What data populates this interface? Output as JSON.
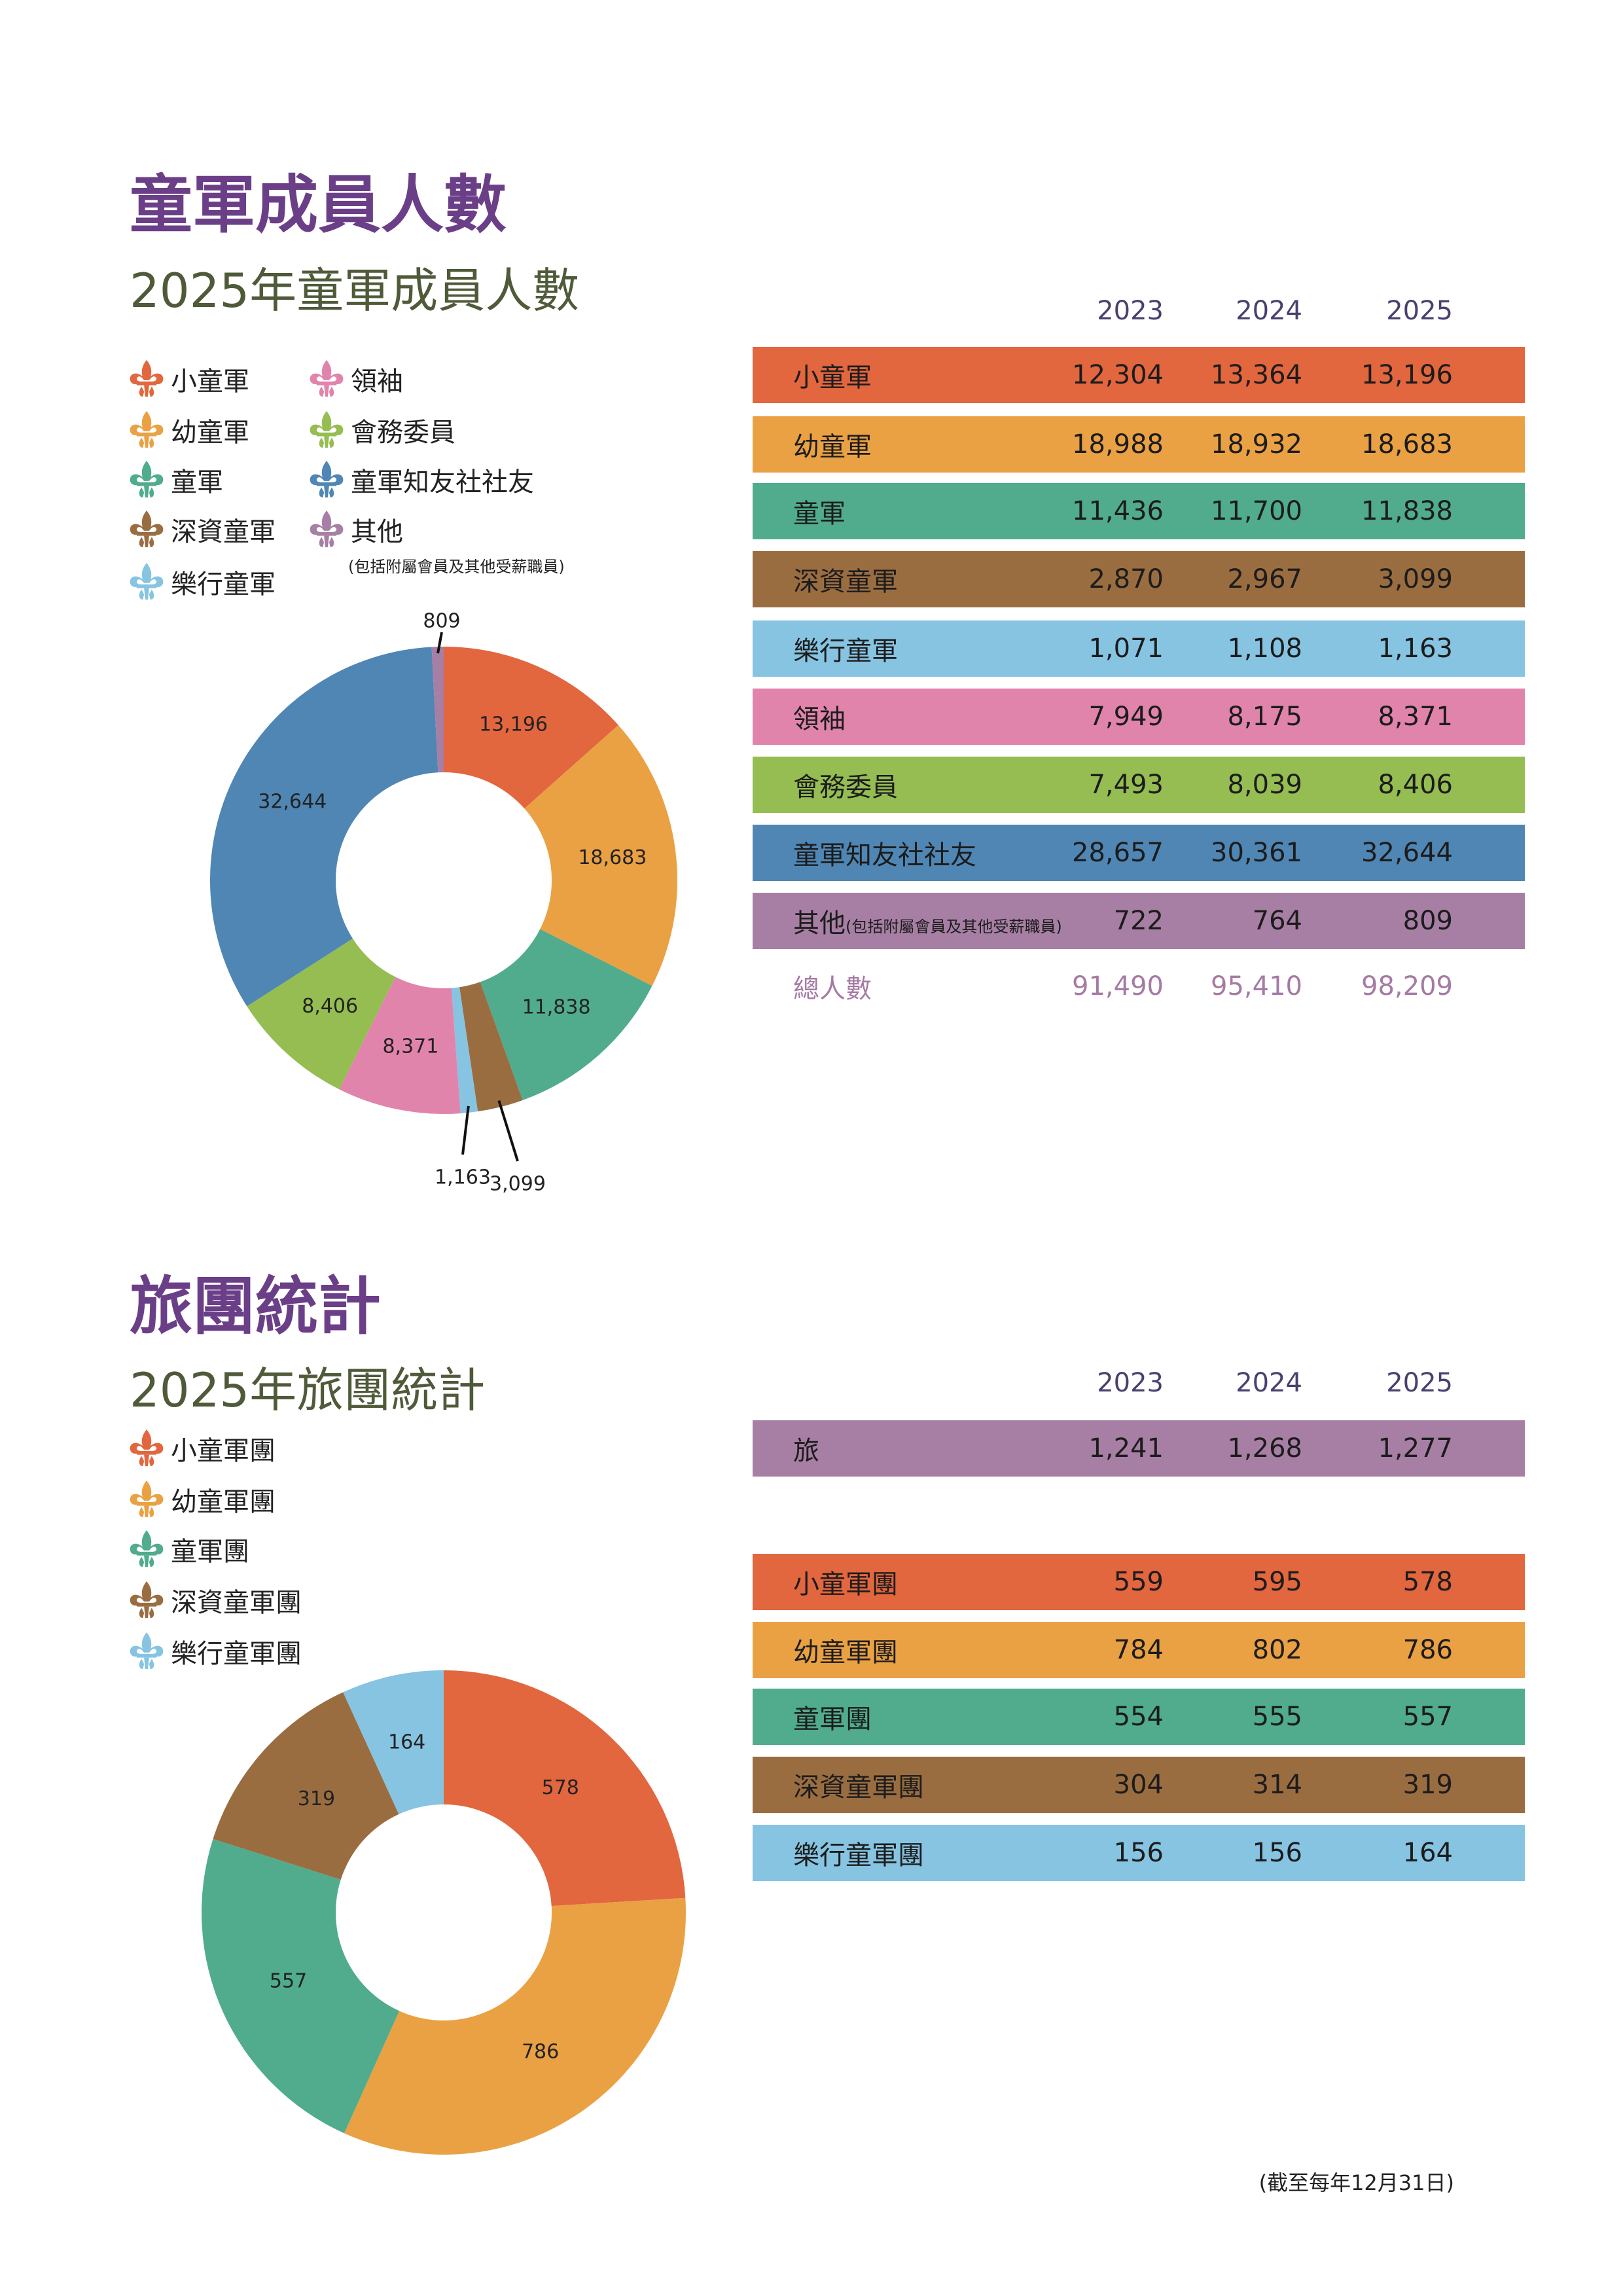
{
  "section1": {
    "title": "童軍成員人數",
    "subtitle": "2025年童軍成員人數",
    "legend": [
      {
        "label": "小童軍",
        "color": "#e2663e"
      },
      {
        "label": "幼童軍",
        "color": "#eaa144"
      },
      {
        "label": "童軍",
        "color": "#50ac8c"
      },
      {
        "label": "深資童軍",
        "color": "#9a6d41"
      },
      {
        "label": "樂行童軍",
        "color": "#86c4e2"
      },
      {
        "label": "領袖",
        "color": "#e184ac"
      },
      {
        "label": "會務委員",
        "color": "#95bd52"
      },
      {
        "label": "童軍知友社社友",
        "color": "#4f86b4"
      },
      {
        "label": "其他",
        "color": "#a77fa4",
        "sub": "(包括附屬會員及其他受薪職員)"
      }
    ],
    "years": [
      "2023",
      "2024",
      "2025"
    ],
    "rows": [
      {
        "label": "小童軍",
        "values": [
          "12,304",
          "13,364",
          "13,196"
        ],
        "color": "#e2663e"
      },
      {
        "label": "幼童軍",
        "values": [
          "18,988",
          "18,932",
          "18,683"
        ],
        "color": "#eaa144"
      },
      {
        "label": "童軍",
        "values": [
          "11,436",
          "11,700",
          "11,838"
        ],
        "color": "#50ac8c"
      },
      {
        "label": "深資童軍",
        "values": [
          "2,870",
          "2,967",
          "3,099"
        ],
        "color": "#9a6d41"
      },
      {
        "label": "樂行童軍",
        "values": [
          "1,071",
          "1,108",
          "1,163"
        ],
        "color": "#86c4e2"
      },
      {
        "label": "領袖",
        "values": [
          "7,949",
          "8,175",
          "8,371"
        ],
        "color": "#e184ac"
      },
      {
        "label": "會務委員",
        "values": [
          "7,493",
          "8,039",
          "8,406"
        ],
        "color": "#95bd52"
      },
      {
        "label": "童軍知友社社友",
        "values": [
          "28,657",
          "30,361",
          "32,644"
        ],
        "color": "#4f86b4"
      },
      {
        "label": "其他",
        "sub": "(包括附屬會員及其他受薪職員)",
        "values": [
          "722",
          "764",
          "809"
        ],
        "color": "#a77fa4"
      }
    ],
    "total": {
      "label": "總人數",
      "values": [
        "91,490",
        "95,410",
        "98,209"
      ]
    }
  },
  "section2": {
    "title": "旅團統計",
    "subtitle": "2025年旅團統計",
    "legend": [
      {
        "label": "小童軍團",
        "color": "#e2663e"
      },
      {
        "label": "幼童軍團",
        "color": "#eaa144"
      },
      {
        "label": "童軍團",
        "color": "#50ac8c"
      },
      {
        "label": "深資童軍團",
        "color": "#9a6d41"
      },
      {
        "label": "樂行童軍團",
        "color": "#86c4e2"
      }
    ],
    "years": [
      "2023",
      "2024",
      "2025"
    ],
    "group_row": {
      "label": "旅",
      "values": [
        "1,241",
        "1,268",
        "1,277"
      ],
      "color": "#a77fa4"
    },
    "rows": [
      {
        "label": "小童軍團",
        "values": [
          "559",
          "595",
          "578"
        ],
        "color": "#e2663e"
      },
      {
        "label": "幼童軍團",
        "values": [
          "784",
          "802",
          "786"
        ],
        "color": "#eaa144"
      },
      {
        "label": "童軍團",
        "values": [
          "554",
          "555",
          "557"
        ],
        "color": "#50ac8c"
      },
      {
        "label": "深資童軍團",
        "values": [
          "304",
          "314",
          "319"
        ],
        "color": "#9a6d41"
      },
      {
        "label": "樂行童軍團",
        "values": [
          "156",
          "156",
          "164"
        ],
        "color": "#86c4e2"
      }
    ]
  },
  "note": "(截至每年12月31日)",
  "chart_data": [
    {
      "type": "pie",
      "categories": [
        "小童軍",
        "幼童軍",
        "童軍",
        "深資童軍",
        "樂行童軍",
        "領袖",
        "會務委員",
        "童軍知友社社友",
        "其他"
      ],
      "values": [
        13196,
        18683,
        11838,
        3099,
        1163,
        8371,
        8406,
        32644,
        809
      ],
      "labels": [
        "13,196",
        "18,683",
        "11,838",
        "3,099",
        "1,163",
        "8,371",
        "8,406",
        "32,644",
        "809"
      ],
      "colors": [
        "#e2663e",
        "#eaa144",
        "#50ac8c",
        "#9a6d41",
        "#86c4e2",
        "#e184ac",
        "#95bd52",
        "#4f86b4",
        "#a77fa4"
      ],
      "title": "2025年童軍成員人數"
    },
    {
      "type": "pie",
      "categories": [
        "小童軍團",
        "幼童軍團",
        "童軍團",
        "深資童軍團",
        "樂行童軍團"
      ],
      "values": [
        578,
        786,
        557,
        319,
        164
      ],
      "labels": [
        "578",
        "786",
        "557",
        "319",
        "164"
      ],
      "colors": [
        "#e2663e",
        "#eaa144",
        "#50ac8c",
        "#9a6d41",
        "#86c4e2"
      ],
      "title": "2025年旅團統計"
    }
  ]
}
